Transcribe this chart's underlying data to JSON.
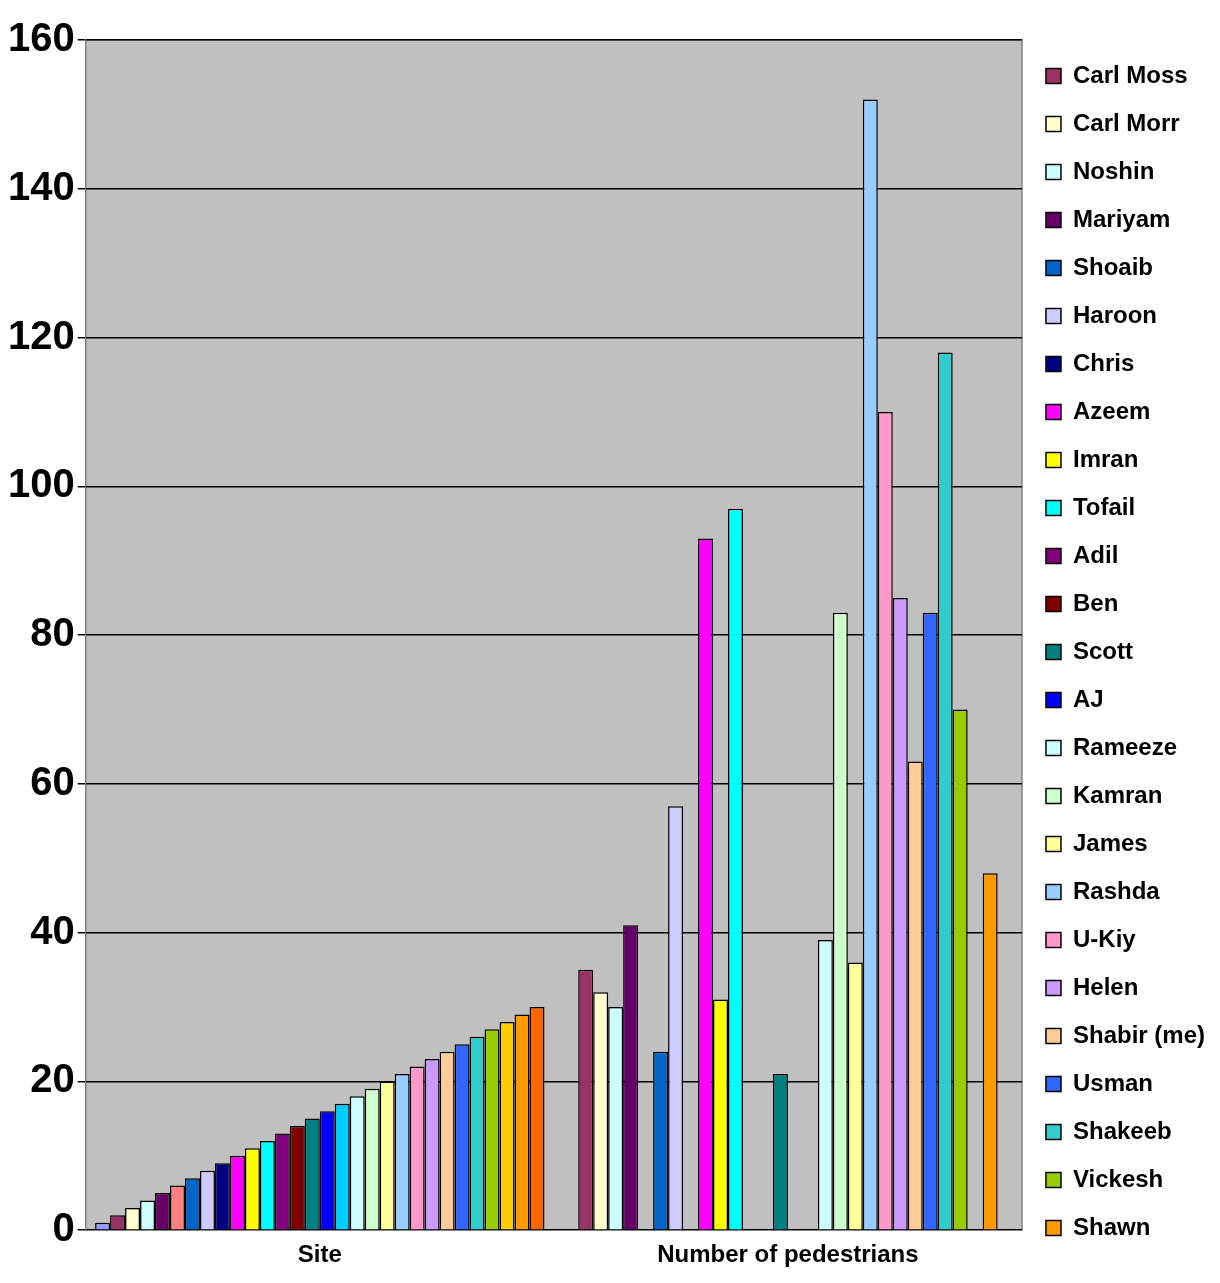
{
  "chart_data": {
    "type": "bar",
    "categories": [
      "Site",
      "Number of pedestrians"
    ],
    "series": [
      {
        "color": "#9999ff",
        "values": [
          1,
          0
        ]
      },
      {
        "name": "Carl Moss",
        "color": "#993366",
        "values": [
          2,
          35
        ]
      },
      {
        "name": "Carl Morr",
        "color": "#ffffcc",
        "values": [
          3,
          32
        ]
      },
      {
        "name": "Noshin",
        "color": "#ccffff",
        "values": [
          4,
          30
        ]
      },
      {
        "name": "Mariyam",
        "color": "#660066",
        "values": [
          5,
          41
        ]
      },
      {
        "color": "#ff8080",
        "values": [
          6,
          0
        ]
      },
      {
        "name": "Shoaib",
        "color": "#0066cc",
        "values": [
          7,
          24
        ]
      },
      {
        "name": "Haroon",
        "color": "#ccccff",
        "values": [
          8,
          57
        ]
      },
      {
        "name": "Chris",
        "color": "#000080",
        "values": [
          9,
          0
        ]
      },
      {
        "name": "Azeem",
        "color": "#ff00ff",
        "values": [
          10,
          93
        ]
      },
      {
        "name": "Imran",
        "color": "#ffff00",
        "values": [
          11,
          31
        ]
      },
      {
        "name": "Tofail",
        "color": "#00ffff",
        "values": [
          12,
          97
        ]
      },
      {
        "name": "Adil",
        "color": "#800080",
        "values": [
          13,
          0
        ]
      },
      {
        "name": "Ben",
        "color": "#800000",
        "values": [
          14,
          0
        ]
      },
      {
        "name": "Scott",
        "color": "#008080",
        "values": [
          15,
          21
        ]
      },
      {
        "name": "AJ",
        "color": "#0000ff",
        "values": [
          16,
          0
        ]
      },
      {
        "color": "#00ccff",
        "values": [
          17,
          0
        ]
      },
      {
        "name": "Rameeze",
        "color": "#ccffff",
        "values": [
          18,
          39
        ]
      },
      {
        "name": "Kamran",
        "color": "#ccffcc",
        "values": [
          19,
          83
        ]
      },
      {
        "name": "James",
        "color": "#ffff99",
        "values": [
          20,
          36
        ]
      },
      {
        "name": "Rashda",
        "color": "#99ccff",
        "values": [
          21,
          152
        ]
      },
      {
        "name": "U-Kiy",
        "color": "#ff99cc",
        "values": [
          22,
          110
        ]
      },
      {
        "name": "Helen",
        "color": "#cc99ff",
        "values": [
          23,
          85
        ]
      },
      {
        "name": "Shabir (me)",
        "color": "#ffcc99",
        "values": [
          24,
          63
        ]
      },
      {
        "name": "Usman",
        "color": "#3366ff",
        "values": [
          25,
          83
        ]
      },
      {
        "name": "Shakeeb",
        "color": "#33cccc",
        "values": [
          26,
          118
        ]
      },
      {
        "name": "Vickesh",
        "color": "#99cc00",
        "values": [
          27,
          70
        ]
      },
      {
        "color": "#ffcc00",
        "values": [
          28,
          0
        ]
      },
      {
        "name": "Shawn",
        "color": "#ff9900",
        "values": [
          29,
          48
        ]
      },
      {
        "color": "#ff6600",
        "values": [
          30,
          0
        ]
      }
    ],
    "ylim": [
      0,
      160
    ],
    "yticks": [
      0,
      20,
      40,
      60,
      80,
      100,
      120,
      140,
      160
    ],
    "grid": "y",
    "legend": "right"
  }
}
